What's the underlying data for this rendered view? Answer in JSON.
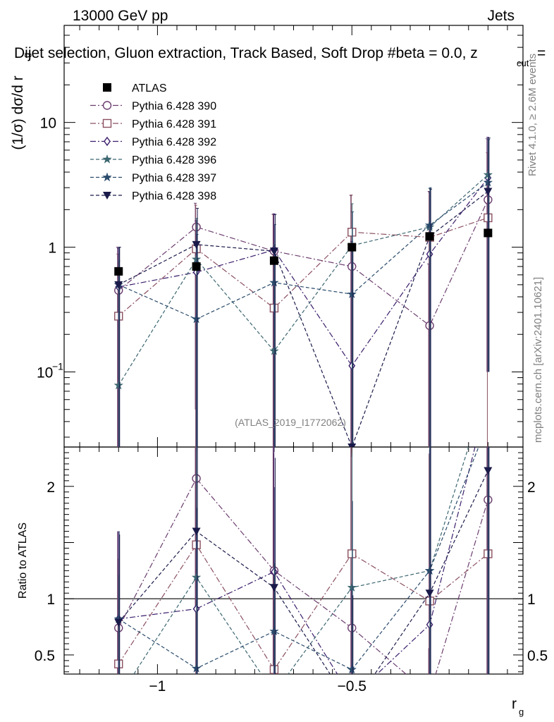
{
  "header": {
    "energy_label": "13000 GeV pp",
    "category_label": "Jets",
    "title": "Dijet selection, Gluon extraction, Track Based, Soft Drop #beta = 0.0, z",
    "title_sub": "cut",
    "title_tail": "=",
    "events_label": "≥ 2.6M events",
    "rivet_label": "Rivet 4.1.0,",
    "source_label": "mcplots.cern.ch [arXiv:2401.10621]",
    "analysis_label": "(ATLAS_2019_I1772062)"
  },
  "chart_data": {
    "type": "line",
    "title": "Dijet selection, Gluon extraction, Track Based, Soft Drop #beta = 0.0, z_cut = ...",
    "xlabel": "r",
    "xlabel_sub": "g",
    "ylabel_main": "(1/σ) dσ/d r",
    "ylabel_sub": "g",
    "ylabel_ratio": "Ratio to ATLAS",
    "xlim": [
      -1.24,
      -0.06
    ],
    "ylim_main": [
      0.025,
      60
    ],
    "yscale_main": "log",
    "ylim_ratio": [
      0.33,
      2.35
    ],
    "x_ticks": [
      {
        "v": -1,
        "label": "−1"
      },
      {
        "v": -0.5,
        "label": "−0.5"
      }
    ],
    "y_ticks_main": [
      {
        "v": 0.1,
        "label": "10",
        "sup": "−1"
      },
      {
        "v": 1,
        "label": "1",
        "sup": ""
      },
      {
        "v": 10,
        "label": "10",
        "sup": ""
      }
    ],
    "y_ticks_ratio": [
      {
        "v": 0.5,
        "label": "0.5"
      },
      {
        "v": 1,
        "label": "1"
      },
      {
        "v": 2,
        "label": "2"
      }
    ],
    "x": [
      -1.1,
      -0.9,
      -0.7,
      -0.5,
      -0.3,
      -0.15
    ],
    "reference": {
      "name": "ATLAS",
      "values": [
        0.64,
        0.7,
        0.78,
        1.0,
        1.22,
        1.3
      ],
      "errors": [
        0.03,
        0.03,
        0.04,
        0.05,
        0.06,
        0.07
      ]
    },
    "series": [
      {
        "name": "Pythia 6.428 390",
        "color": "#6b3d6e",
        "dash": "8,3,2,3",
        "marker": "circle-open",
        "values": [
          0.45,
          1.45,
          0.93,
          0.7,
          0.235,
          2.4
        ],
        "err_up": [
          0.55,
          0.8,
          0.9,
          1.9,
          0.5,
          5.0
        ],
        "err_dn": [
          0.45,
          1.4,
          0.92,
          0.69,
          0.22,
          2.3
        ],
        "ratio": [
          0.74,
          2.07,
          1.25,
          0.74,
          0.15,
          1.88
        ]
      },
      {
        "name": "Pythia 6.428 391",
        "color": "#8a5060",
        "dash": "8,3,2,3",
        "marker": "square-open",
        "values": [
          0.28,
          0.97,
          0.325,
          1.32,
          1.2,
          1.72
        ],
        "err_up": [
          0.6,
          1.2,
          1.5,
          1.3,
          1.6,
          4.0
        ],
        "err_dn": [
          0.27,
          0.95,
          0.32,
          1.3,
          1.18,
          1.7
        ],
        "ratio": [
          0.42,
          1.48,
          0.37,
          1.4,
          0.98,
          1.4
        ]
      },
      {
        "name": "Pythia 6.428 392",
        "color": "#3a1d6b",
        "dash": "8,3,2,3",
        "marker": "diamond-open",
        "values": [
          0.48,
          0.63,
          0.95,
          0.112,
          0.88,
          3.6
        ],
        "err_up": [
          0.5,
          1.0,
          0.9,
          1.0,
          1.9,
          4.0
        ],
        "err_dn": [
          0.47,
          0.62,
          0.94,
          0.11,
          0.87,
          3.5
        ],
        "ratio": [
          0.82,
          0.91,
          1.24,
          0.12,
          0.77,
          2.8
        ]
      },
      {
        "name": "Pythia 6.428 396",
        "color": "#3c6670",
        "dash": "5,3",
        "marker": "star",
        "values": [
          0.078,
          0.8,
          0.147,
          1.03,
          1.45,
          3.8
        ],
        "err_up": [
          0.7,
          0.9,
          0.9,
          1.2,
          1.5,
          3.5
        ],
        "err_dn": [
          0.077,
          0.79,
          0.146,
          1.02,
          1.44,
          3.7
        ],
        "ratio": [
          0.12,
          1.19,
          0.16,
          1.1,
          1.25,
          2.9
        ]
      },
      {
        "name": "Pythia 6.428 397",
        "color": "#2a4a6b",
        "dash": "5,3",
        "marker": "star",
        "values": [
          0.5,
          0.265,
          0.52,
          0.42,
          1.5,
          3.3
        ],
        "err_up": [
          0.5,
          1.0,
          1.0,
          1.5,
          1.5,
          4.0
        ],
        "err_dn": [
          0.49,
          0.26,
          0.51,
          0.41,
          1.49,
          3.2
        ],
        "ratio": [
          0.82,
          0.38,
          0.71,
          0.37,
          1.25,
          2.56
        ]
      },
      {
        "name": "Pythia 6.428 398",
        "color": "#1a1a4a",
        "dash": "5,3",
        "marker": "triangle-down",
        "values": [
          0.5,
          1.05,
          0.93,
          0.025,
          1.22,
          2.8
        ],
        "err_up": [
          0.5,
          1.0,
          0.9,
          1.0,
          1.7,
          4.7
        ],
        "err_dn": [
          0.49,
          1.04,
          0.92,
          0.024,
          1.21,
          2.7
        ],
        "ratio": [
          0.79,
          1.6,
          1.1,
          0.03,
          1.05,
          2.14
        ]
      }
    ]
  }
}
